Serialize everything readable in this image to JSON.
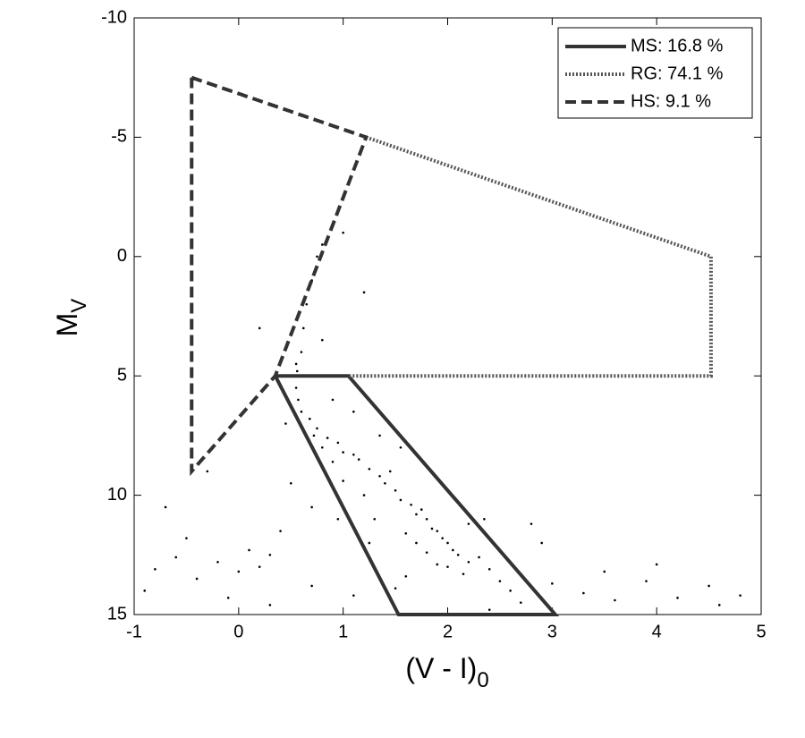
{
  "chart_data": {
    "type": "scatter",
    "xlabel": {
      "text": "(V - I)",
      "sub": "0"
    },
    "ylabel": {
      "text": "M",
      "sub": "V"
    },
    "xlim": [
      -1,
      5
    ],
    "ylim": [
      15,
      -10
    ],
    "xticks": [
      -1,
      0,
      1,
      2,
      3,
      4,
      5
    ],
    "yticks": [
      -10,
      -5,
      0,
      5,
      10,
      15
    ],
    "legend": "upper right",
    "series": [
      {
        "name": "MS: 16.8 %",
        "color": "#333333",
        "style": "solid",
        "x": [
          0.35,
          1.05,
          3.03,
          1.53,
          0.35
        ],
        "y": [
          5,
          5,
          15,
          15,
          5
        ]
      },
      {
        "name": "RG: 74.1 %",
        "color": "#555555",
        "style": "dotted",
        "x": [
          1.22,
          4.52,
          4.52,
          1.05
        ],
        "y": [
          -5,
          0,
          5,
          5
        ]
      },
      {
        "name": "HS: 9.1 %",
        "color": "#333333",
        "style": "dashed",
        "x": [
          -0.45,
          1.22,
          0.35,
          -0.45,
          -0.45
        ],
        "y": [
          -7.5,
          -5,
          5,
          9,
          -7.5
        ]
      }
    ],
    "points": {
      "color": "#000000",
      "x": [
        0.55,
        0.55,
        0.6,
        0.75,
        0.95,
        1.15,
        1.35,
        1.5,
        1.65,
        1.8,
        1.9,
        2.0,
        2.1,
        0.6,
        0.62,
        0.65,
        0.7,
        0.75,
        0.8,
        0.58,
        0.57,
        0.56,
        0.68,
        0.72,
        0.85,
        1.0,
        1.1,
        1.25,
        1.4,
        1.45,
        1.55,
        1.7,
        1.75,
        1.85,
        1.95,
        2.05,
        2.2,
        2.3,
        1.6,
        1.7,
        1.8,
        2.0,
        2.15,
        2.4,
        2.5,
        2.6,
        1.3,
        1.2,
        1.0,
        0.9,
        0.8,
        0.45,
        0.5,
        0.4,
        0.3,
        0.2,
        0.1,
        0.0,
        -0.2,
        -0.4,
        -0.6,
        -0.8,
        -0.9,
        -0.5,
        -0.1,
        0.3,
        0.7,
        1.1,
        1.5,
        2.7,
        3.0,
        3.3,
        3.6,
        3.9,
        4.2,
        4.5,
        4.8,
        3.5,
        4.0,
        4.6,
        2.9,
        2.2,
        1.9,
        1.6,
        1.25,
        0.95,
        0.7,
        0.9,
        1.1,
        0.8,
        1.2,
        1.0,
        2.4,
        2.8,
        0.2,
        -0.3,
        -0.7,
        1.35,
        1.55,
        2.35
      ],
      "y": [
        4.5,
        5.5,
        6.5,
        7.2,
        7.8,
        8.5,
        9.2,
        9.8,
        10.4,
        11,
        11.5,
        12,
        12.5,
        4,
        3,
        2,
        1,
        0,
        -0.5,
        5,
        6,
        4.8,
        6.8,
        7.5,
        7.6,
        8.2,
        8.3,
        8.9,
        9.5,
        9.0,
        10.2,
        10.8,
        10.6,
        11.4,
        11.8,
        12.3,
        12.8,
        12.6,
        11.6,
        12.0,
        12.4,
        13.0,
        13.3,
        13.1,
        13.6,
        14.0,
        11.0,
        10.0,
        9.4,
        8.6,
        8.0,
        7.0,
        9.5,
        11.5,
        12.5,
        13.0,
        12.3,
        13.2,
        12.8,
        13.5,
        12.6,
        13.1,
        14.0,
        11.8,
        14.3,
        14.6,
        13.8,
        14.2,
        13.9,
        14.5,
        13.7,
        14.1,
        14.4,
        13.6,
        14.3,
        13.8,
        14.2,
        13.2,
        12.9,
        14.6,
        12.0,
        11.2,
        12.9,
        13.4,
        12.0,
        11.0,
        10.5,
        6.0,
        6.5,
        3.5,
        1.5,
        -1.0,
        14.8,
        11.2,
        3.0,
        9.0,
        10.5,
        7.5,
        8.0,
        11.0
      ]
    }
  }
}
